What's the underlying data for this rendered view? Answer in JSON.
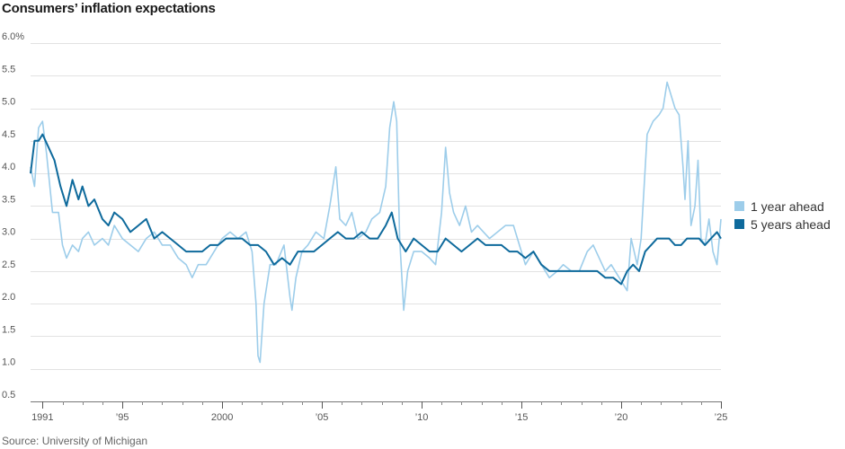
{
  "chart_data": {
    "type": "line",
    "title": "Consumers’ inflation expectations",
    "source": "Source: University of Michigan",
    "ylim": [
      0.5,
      6.0
    ],
    "y_ticks": [
      0.5,
      1.0,
      1.5,
      2.0,
      2.5,
      3.0,
      3.5,
      4.0,
      4.5,
      5.0,
      5.5,
      6.0
    ],
    "y_tick_labels": [
      "0.5",
      "1.0",
      "1.5",
      "2.0",
      "2.5",
      "3.0",
      "3.5",
      "4.0",
      "4.5",
      "5.0",
      "5.5",
      "6.0%"
    ],
    "xlim": [
      1990.4,
      2025.0
    ],
    "x_ticks": [
      1991,
      1995,
      2000,
      2005,
      2010,
      2015,
      2020,
      2025
    ],
    "x_tick_labels": [
      "1991",
      "’95",
      "2000",
      "’05",
      "’10",
      "’15",
      "’20",
      "’25"
    ],
    "grid": true,
    "legend_position": "right",
    "series": [
      {
        "name": "1 year ahead",
        "color": "#9dcdea",
        "points": [
          [
            1990.4,
            4.1
          ],
          [
            1990.6,
            3.8
          ],
          [
            1990.8,
            4.7
          ],
          [
            1991.0,
            4.8
          ],
          [
            1991.2,
            4.3
          ],
          [
            1991.5,
            3.4
          ],
          [
            1991.8,
            3.4
          ],
          [
            1992.0,
            2.9
          ],
          [
            1992.2,
            2.7
          ],
          [
            1992.5,
            2.9
          ],
          [
            1992.8,
            2.8
          ],
          [
            1993.0,
            3.0
          ],
          [
            1993.3,
            3.1
          ],
          [
            1993.6,
            2.9
          ],
          [
            1994.0,
            3.0
          ],
          [
            1994.3,
            2.9
          ],
          [
            1994.6,
            3.2
          ],
          [
            1995.0,
            3.0
          ],
          [
            1995.4,
            2.9
          ],
          [
            1995.8,
            2.8
          ],
          [
            1996.2,
            3.0
          ],
          [
            1996.6,
            3.1
          ],
          [
            1997.0,
            2.9
          ],
          [
            1997.4,
            2.9
          ],
          [
            1997.8,
            2.7
          ],
          [
            1998.2,
            2.6
          ],
          [
            1998.5,
            2.4
          ],
          [
            1998.8,
            2.6
          ],
          [
            1999.2,
            2.6
          ],
          [
            1999.6,
            2.8
          ],
          [
            2000.0,
            3.0
          ],
          [
            2000.4,
            3.1
          ],
          [
            2000.8,
            3.0
          ],
          [
            2001.2,
            3.1
          ],
          [
            2001.5,
            2.8
          ],
          [
            2001.7,
            2.0
          ],
          [
            2001.8,
            1.2
          ],
          [
            2001.9,
            1.1
          ],
          [
            2002.1,
            2.0
          ],
          [
            2002.4,
            2.6
          ],
          [
            2002.7,
            2.6
          ],
          [
            2003.1,
            2.9
          ],
          [
            2003.4,
            2.1
          ],
          [
            2003.5,
            1.9
          ],
          [
            2003.7,
            2.4
          ],
          [
            2004.0,
            2.8
          ],
          [
            2004.3,
            2.9
          ],
          [
            2004.7,
            3.1
          ],
          [
            2005.1,
            3.0
          ],
          [
            2005.4,
            3.5
          ],
          [
            2005.7,
            4.1
          ],
          [
            2005.9,
            3.3
          ],
          [
            2006.2,
            3.2
          ],
          [
            2006.5,
            3.4
          ],
          [
            2006.8,
            3.0
          ],
          [
            2007.2,
            3.1
          ],
          [
            2007.5,
            3.3
          ],
          [
            2007.9,
            3.4
          ],
          [
            2008.2,
            3.8
          ],
          [
            2008.4,
            4.7
          ],
          [
            2008.6,
            5.1
          ],
          [
            2008.75,
            4.8
          ],
          [
            2008.9,
            3.0
          ],
          [
            2009.1,
            1.9
          ],
          [
            2009.3,
            2.5
          ],
          [
            2009.6,
            2.8
          ],
          [
            2010.0,
            2.8
          ],
          [
            2010.4,
            2.7
          ],
          [
            2010.7,
            2.6
          ],
          [
            2011.0,
            3.4
          ],
          [
            2011.2,
            4.4
          ],
          [
            2011.4,
            3.7
          ],
          [
            2011.6,
            3.4
          ],
          [
            2011.9,
            3.2
          ],
          [
            2012.2,
            3.5
          ],
          [
            2012.5,
            3.1
          ],
          [
            2012.8,
            3.2
          ],
          [
            2013.1,
            3.1
          ],
          [
            2013.4,
            3.0
          ],
          [
            2013.8,
            3.1
          ],
          [
            2014.2,
            3.2
          ],
          [
            2014.6,
            3.2
          ],
          [
            2014.9,
            2.9
          ],
          [
            2015.2,
            2.6
          ],
          [
            2015.6,
            2.8
          ],
          [
            2016.0,
            2.6
          ],
          [
            2016.4,
            2.4
          ],
          [
            2016.8,
            2.5
          ],
          [
            2017.1,
            2.6
          ],
          [
            2017.5,
            2.5
          ],
          [
            2017.9,
            2.5
          ],
          [
            2018.3,
            2.8
          ],
          [
            2018.6,
            2.9
          ],
          [
            2018.9,
            2.7
          ],
          [
            2019.2,
            2.5
          ],
          [
            2019.5,
            2.6
          ],
          [
            2019.9,
            2.4
          ],
          [
            2020.1,
            2.3
          ],
          [
            2020.3,
            2.2
          ],
          [
            2020.5,
            3.0
          ],
          [
            2020.8,
            2.6
          ],
          [
            2021.0,
            3.0
          ],
          [
            2021.3,
            4.6
          ],
          [
            2021.6,
            4.8
          ],
          [
            2021.9,
            4.9
          ],
          [
            2022.1,
            5.0
          ],
          [
            2022.3,
            5.4
          ],
          [
            2022.5,
            5.2
          ],
          [
            2022.7,
            5.0
          ],
          [
            2022.9,
            4.9
          ],
          [
            2023.1,
            4.1
          ],
          [
            2023.2,
            3.6
          ],
          [
            2023.35,
            4.5
          ],
          [
            2023.5,
            3.2
          ],
          [
            2023.7,
            3.5
          ],
          [
            2023.85,
            4.2
          ],
          [
            2024.0,
            3.0
          ],
          [
            2024.2,
            2.9
          ],
          [
            2024.4,
            3.3
          ],
          [
            2024.6,
            2.8
          ],
          [
            2024.8,
            2.6
          ],
          [
            2025.0,
            3.3
          ]
        ]
      },
      {
        "name": "5 years ahead",
        "color": "#0e6a9c",
        "points": [
          [
            1990.4,
            4.0
          ],
          [
            1990.6,
            4.5
          ],
          [
            1990.8,
            4.5
          ],
          [
            1991.0,
            4.6
          ],
          [
            1991.3,
            4.4
          ],
          [
            1991.6,
            4.2
          ],
          [
            1991.9,
            3.8
          ],
          [
            1992.2,
            3.5
          ],
          [
            1992.5,
            3.9
          ],
          [
            1992.8,
            3.6
          ],
          [
            1993.0,
            3.8
          ],
          [
            1993.3,
            3.5
          ],
          [
            1993.6,
            3.6
          ],
          [
            1994.0,
            3.3
          ],
          [
            1994.3,
            3.2
          ],
          [
            1994.6,
            3.4
          ],
          [
            1995.0,
            3.3
          ],
          [
            1995.4,
            3.1
          ],
          [
            1995.8,
            3.2
          ],
          [
            1996.2,
            3.3
          ],
          [
            1996.6,
            3.0
          ],
          [
            1997.0,
            3.1
          ],
          [
            1997.4,
            3.0
          ],
          [
            1997.8,
            2.9
          ],
          [
            1998.2,
            2.8
          ],
          [
            1998.6,
            2.8
          ],
          [
            1999.0,
            2.8
          ],
          [
            1999.4,
            2.9
          ],
          [
            1999.8,
            2.9
          ],
          [
            2000.2,
            3.0
          ],
          [
            2000.6,
            3.0
          ],
          [
            2001.0,
            3.0
          ],
          [
            2001.4,
            2.9
          ],
          [
            2001.8,
            2.9
          ],
          [
            2002.2,
            2.8
          ],
          [
            2002.6,
            2.6
          ],
          [
            2003.0,
            2.7
          ],
          [
            2003.4,
            2.6
          ],
          [
            2003.8,
            2.8
          ],
          [
            2004.2,
            2.8
          ],
          [
            2004.6,
            2.8
          ],
          [
            2005.0,
            2.9
          ],
          [
            2005.4,
            3.0
          ],
          [
            2005.8,
            3.1
          ],
          [
            2006.2,
            3.0
          ],
          [
            2006.6,
            3.0
          ],
          [
            2007.0,
            3.1
          ],
          [
            2007.4,
            3.0
          ],
          [
            2007.8,
            3.0
          ],
          [
            2008.2,
            3.2
          ],
          [
            2008.5,
            3.4
          ],
          [
            2008.8,
            3.0
          ],
          [
            2009.2,
            2.8
          ],
          [
            2009.6,
            3.0
          ],
          [
            2010.0,
            2.9
          ],
          [
            2010.4,
            2.8
          ],
          [
            2010.8,
            2.8
          ],
          [
            2011.2,
            3.0
          ],
          [
            2011.6,
            2.9
          ],
          [
            2012.0,
            2.8
          ],
          [
            2012.4,
            2.9
          ],
          [
            2012.8,
            3.0
          ],
          [
            2013.2,
            2.9
          ],
          [
            2013.6,
            2.9
          ],
          [
            2014.0,
            2.9
          ],
          [
            2014.4,
            2.8
          ],
          [
            2014.8,
            2.8
          ],
          [
            2015.2,
            2.7
          ],
          [
            2015.6,
            2.8
          ],
          [
            2016.0,
            2.6
          ],
          [
            2016.4,
            2.5
          ],
          [
            2016.8,
            2.5
          ],
          [
            2017.2,
            2.5
          ],
          [
            2017.6,
            2.5
          ],
          [
            2018.0,
            2.5
          ],
          [
            2018.4,
            2.5
          ],
          [
            2018.8,
            2.5
          ],
          [
            2019.2,
            2.4
          ],
          [
            2019.6,
            2.4
          ],
          [
            2020.0,
            2.3
          ],
          [
            2020.3,
            2.5
          ],
          [
            2020.6,
            2.6
          ],
          [
            2020.9,
            2.5
          ],
          [
            2021.2,
            2.8
          ],
          [
            2021.5,
            2.9
          ],
          [
            2021.8,
            3.0
          ],
          [
            2022.1,
            3.0
          ],
          [
            2022.4,
            3.0
          ],
          [
            2022.7,
            2.9
          ],
          [
            2023.0,
            2.9
          ],
          [
            2023.3,
            3.0
          ],
          [
            2023.6,
            3.0
          ],
          [
            2023.9,
            3.0
          ],
          [
            2024.2,
            2.9
          ],
          [
            2024.5,
            3.0
          ],
          [
            2024.8,
            3.1
          ],
          [
            2025.0,
            3.0
          ]
        ]
      }
    ]
  }
}
